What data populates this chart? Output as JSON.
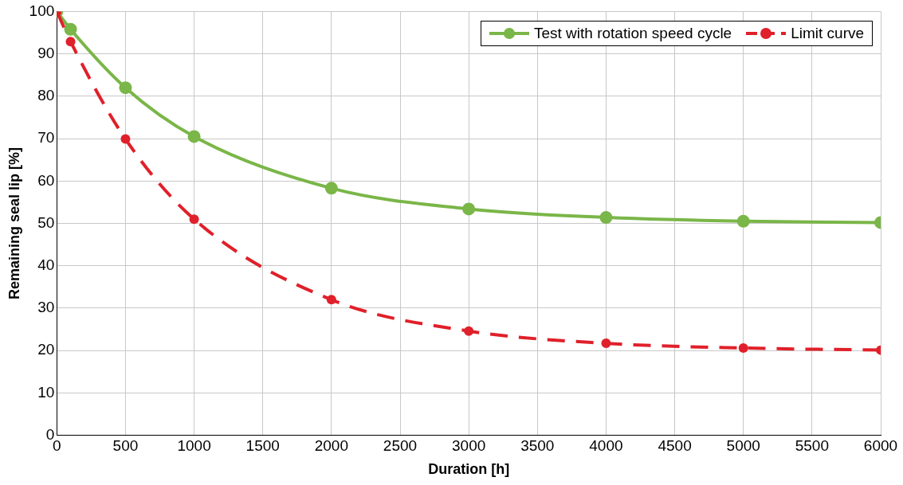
{
  "chart_data": {
    "type": "line",
    "xlabel": "Duration [h]",
    "ylabel": "Remaining seal lip [%]",
    "x": [
      0,
      100,
      500,
      1000,
      2000,
      3000,
      4000,
      5000,
      6000
    ],
    "series": [
      {
        "name": "Test with rotation speed cycle",
        "color": "#7ab648",
        "line_style": "solid",
        "values": [
          100,
          95.8,
          82,
          70.5,
          58.3,
          53.4,
          51.4,
          50.5,
          50.2
        ]
      },
      {
        "name": "Limit curve",
        "color": "#e0202a",
        "line_style": "dashed",
        "values": [
          100,
          92.9,
          69.9,
          51,
          32,
          24.6,
          21.7,
          20.6,
          20.1
        ]
      }
    ],
    "xlim": [
      0,
      6000
    ],
    "xticks": [
      0,
      500,
      1000,
      1500,
      2000,
      2500,
      3000,
      3500,
      4000,
      4500,
      5000,
      5500,
      6000
    ],
    "ylim": [
      0,
      100
    ],
    "yticks": [
      0,
      10,
      20,
      30,
      40,
      50,
      60,
      70,
      80,
      90,
      100
    ],
    "grid": true,
    "legend": "top right",
    "marker": "circle"
  }
}
